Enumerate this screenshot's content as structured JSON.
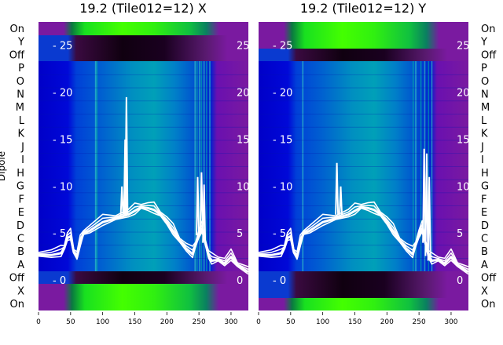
{
  "chart_data": {
    "type": "heatmap",
    "ylabel": "Dipole",
    "row_labels": [
      "On",
      "Y",
      "Off",
      "P",
      "O",
      "N",
      "M",
      "L",
      "K",
      "J",
      "I",
      "H",
      "G",
      "F",
      "E",
      "D",
      "C",
      "B",
      "A",
      "Off",
      "X",
      "On"
    ],
    "x_ticks": [
      0,
      50,
      100,
      150,
      200,
      250,
      300
    ],
    "xlim": [
      0,
      327
    ],
    "overlay_ticks": [
      25,
      20,
      15,
      10,
      5,
      0
    ],
    "overlay_ylim": [
      -3.2,
      27.5
    ],
    "panels": [
      {
        "title": "19.2 (Tile012=12) X",
        "spikes": [
          {
            "x": 135,
            "y": 15.0
          },
          {
            "x": 137,
            "y": 19.5
          },
          {
            "x": 130,
            "y": 10.0
          },
          {
            "x": 248,
            "y": 11.0
          },
          {
            "x": 254,
            "y": 11.5
          },
          {
            "x": 258,
            "y": 10.2
          }
        ]
      },
      {
        "title": "19.2 (Tile012=12) Y",
        "spikes": [
          {
            "x": 122,
            "y": 12.5
          },
          {
            "x": 128,
            "y": 10.0
          },
          {
            "x": 258,
            "y": 14.0
          },
          {
            "x": 262,
            "y": 13.5
          },
          {
            "x": 266,
            "y": 11.0
          }
        ]
      }
    ],
    "overlay_curve": {
      "x": [
        0,
        20,
        35,
        40,
        45,
        50,
        55,
        60,
        65,
        70,
        80,
        100,
        120,
        140,
        150,
        160,
        170,
        180,
        190,
        200,
        210,
        220,
        230,
        240,
        245,
        250,
        255,
        260,
        265,
        270,
        280,
        290,
        300,
        310,
        327
      ],
      "y": [
        2.7,
        2.7,
        2.9,
        3.4,
        4.5,
        4.7,
        3.0,
        2.5,
        4.0,
        5.0,
        5.3,
        6.2,
        6.6,
        7.0,
        7.4,
        7.8,
        7.7,
        7.5,
        7.0,
        6.2,
        5.2,
        4.2,
        3.4,
        2.8,
        3.8,
        4.8,
        5.5,
        4.0,
        2.6,
        2.1,
        2.2,
        1.8,
        2.5,
        1.6,
        0.9
      ]
    }
  }
}
